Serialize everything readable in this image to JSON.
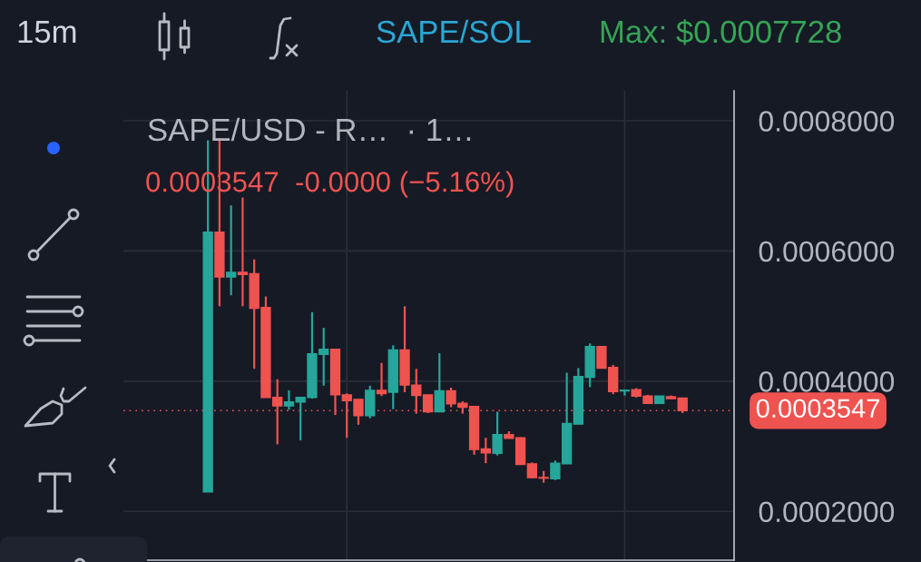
{
  "chart_data": {
    "type": "candlestick",
    "title": "SAPE/USD - R…  · 1…",
    "subtitle": "0.0003547  -0.0000 (−5.16%)",
    "annotations": [
      "15m",
      "SAPE/SOL",
      "Max: $0.0007728"
    ],
    "categories": [
      null,
      null,
      null,
      null,
      null,
      null,
      null,
      null,
      null,
      null,
      null,
      null,
      null,
      null,
      null,
      null,
      null,
      null,
      null,
      null,
      null,
      null,
      null,
      null,
      null,
      null,
      null,
      null,
      null,
      null,
      null,
      null,
      null,
      null,
      null,
      null,
      null,
      null,
      null,
      null,
      null,
      null
    ],
    "ohlc": [
      [
        0.00023,
        0.00077,
        0.00023,
        0.000629
      ],
      [
        0.000629,
        0.000773,
        0.000515,
        0.00056
      ],
      [
        0.00056,
        0.00067,
        0.000532,
        0.000567
      ],
      [
        0.000567,
        0.000682,
        0.000515,
        0.000564
      ],
      [
        0.000565,
        0.000587,
        0.000419,
        0.000512
      ],
      [
        0.000513,
        0.00053,
        0.000375,
        0.000375
      ],
      [
        0.000375,
        0.000403,
        0.000303,
        0.000362
      ],
      [
        0.000362,
        0.000386,
        0.000356,
        0.000368
      ],
      [
        0.000368,
        0.000375,
        0.000309,
        0.000375
      ],
      [
        0.000375,
        0.000506,
        0.000373,
        0.000442
      ],
      [
        0.000441,
        0.000482,
        0.000393,
        0.000449
      ],
      [
        0.000449,
        0.000449,
        0.000348,
        0.000379
      ],
      [
        0.000379,
        0.000381,
        0.000313,
        0.00037
      ],
      [
        0.000372,
        0.000372,
        0.000333,
        0.000347
      ],
      [
        0.000347,
        0.000393,
        0.000343,
        0.000386
      ],
      [
        0.000386,
        0.000428,
        0.000377,
        0.000381
      ],
      [
        0.000383,
        0.000455,
        0.000357,
        0.000448
      ],
      [
        0.000448,
        0.000515,
        0.000383,
        0.000394
      ],
      [
        0.000394,
        0.000419,
        0.00035,
        0.000378
      ],
      [
        0.000379,
        0.000379,
        0.000351,
        0.000353
      ],
      [
        0.000353,
        0.000443,
        0.000353,
        0.000385
      ],
      [
        0.000385,
        0.00039,
        0.00036,
        0.000365
      ],
      [
        0.000366,
        0.000369,
        0.00035,
        0.00036
      ],
      [
        0.000361,
        0.000362,
        0.000287,
        0.000295
      ],
      [
        0.000296,
        0.000313,
        0.000274,
        0.00029
      ],
      [
        0.000289,
        0.000353,
        0.000286,
        0.000318
      ],
      [
        0.000318,
        0.000323,
        0.000312,
        0.000312
      ],
      [
        0.000313,
        0.000314,
        0.000272,
        0.000272
      ],
      [
        0.000273,
        0.000275,
        0.000251,
        0.000252
      ],
      [
        0.000252,
        0.000262,
        0.000244,
        0.000251
      ],
      [
        0.00025,
        0.000278,
        0.000248,
        0.000274
      ],
      [
        0.000273,
        0.000413,
        0.000273,
        0.000335
      ],
      [
        0.000334,
        0.00042,
        0.000334,
        0.000407
      ],
      [
        0.000406,
        0.000458,
        0.000391,
        0.000453
      ],
      [
        0.000453,
        0.000454,
        0.00042,
        0.00042
      ],
      [
        0.000421,
        0.000425,
        0.00038,
        0.000384
      ],
      [
        0.000385,
        0.000387,
        0.000378,
        0.000386
      ],
      [
        0.000387,
        0.000389,
        0.000375,
        0.000377
      ],
      [
        0.000377,
        0.000379,
        0.000366,
        0.000366
      ],
      [
        0.000366,
        0.000377,
        0.000366,
        0.000377
      ],
      [
        0.000376,
        0.000378,
        0.000373,
        0.000373
      ],
      [
        0.000374,
        0.000374,
        0.000351,
        0.0003547
      ]
    ],
    "colors": [
      "#26a69a",
      "#ef5350",
      "#26a69a",
      "#ef5350",
      "#ef5350",
      "#ef5350",
      "#ef5350",
      "#26a69a",
      "#26a69a",
      "#26a69a",
      "#26a69a",
      "#ef5350",
      "#ef5350",
      "#ef5350",
      "#26a69a",
      "#ef5350",
      "#26a69a",
      "#ef5350",
      "#ef5350",
      "#ef5350",
      "#26a69a",
      "#ef5350",
      "#ef5350",
      "#ef5350",
      "#ef5350",
      "#26a69a",
      "#ef5350",
      "#ef5350",
      "#ef5350",
      "#ef5350",
      "#26a69a",
      "#26a69a",
      "#26a69a",
      "#26a69a",
      "#ef5350",
      "#ef5350",
      "#26a69a",
      "#ef5350",
      "#ef5350",
      "#26a69a",
      "#ef5350",
      "#ef5350"
    ],
    "ylim": [
      0.000125,
      0.000846
    ],
    "yticks": [
      {
        "value": 0.0002,
        "label": "0.0002000"
      },
      {
        "value": 0.0004,
        "label": "0.0004000"
      },
      {
        "value": 0.0006,
        "label": "0.0006000"
      },
      {
        "value": 0.0008,
        "label": "0.0008000"
      }
    ],
    "ref_lines": [
      {
        "axis": "y",
        "value": 0.0003547,
        "label": "0.0003547",
        "color": "#ef5350",
        "line_style": "dotted"
      }
    ],
    "grid": true
  }
}
